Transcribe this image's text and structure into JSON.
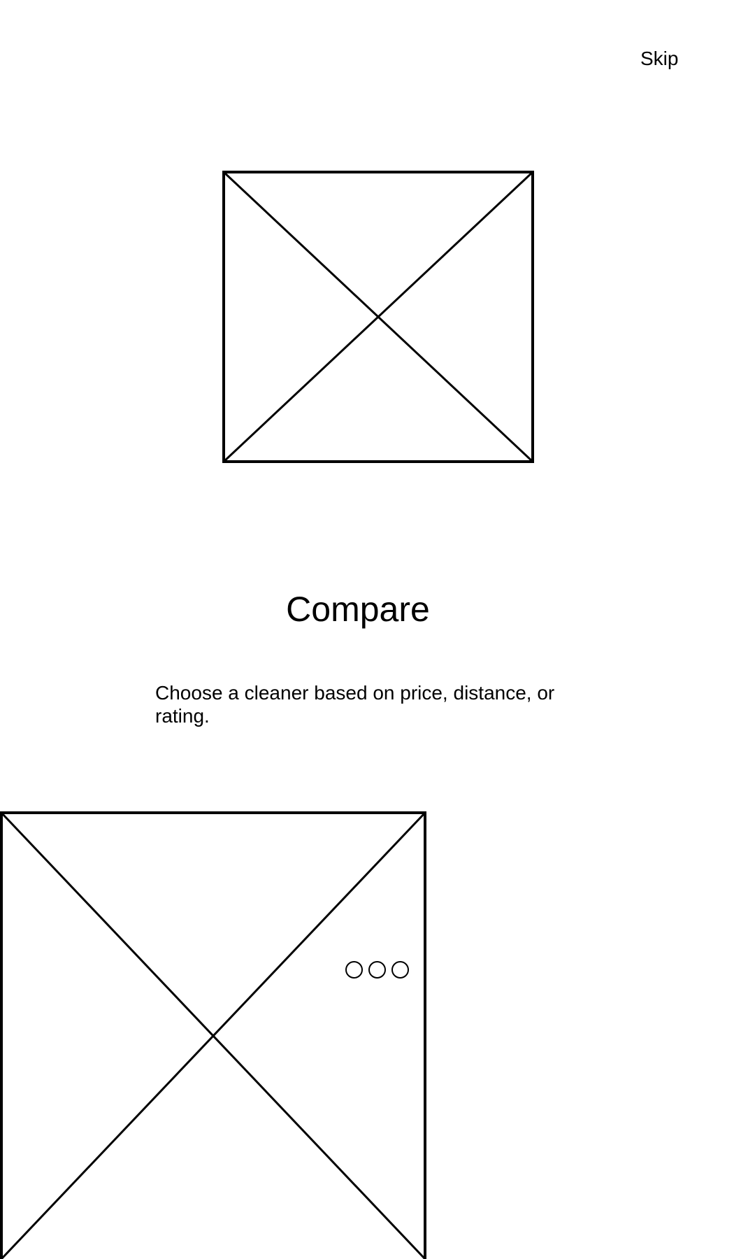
{
  "header": {
    "skip_label": "Skip"
  },
  "images": {
    "hero_icon": "image-placeholder-icon",
    "bottom_icon": "image-placeholder-icon"
  },
  "onboarding": {
    "title": "Compare",
    "description": "Choose a cleaner based on price, distance, or rating."
  },
  "pager": {
    "dots": [
      {
        "icon": "page-dot-icon"
      },
      {
        "icon": "page-dot-icon"
      },
      {
        "icon": "page-dot-icon"
      }
    ]
  },
  "colors": {
    "background": "#ffffff",
    "stroke": "#000000"
  }
}
